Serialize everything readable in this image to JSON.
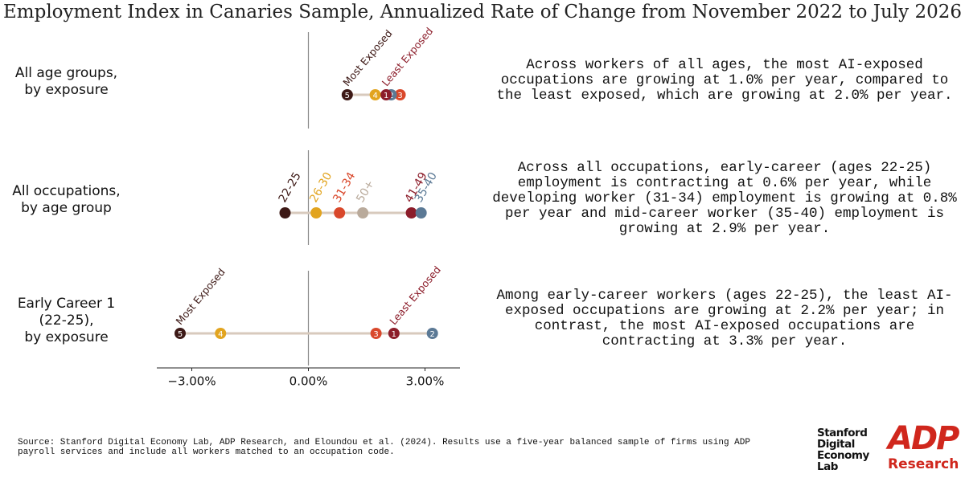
{
  "chart_data": {
    "type": "dot",
    "title": "Employment Index in Canaries Sample, Annualized Rate of Change from November 2022 to July 2026",
    "xlim": [
      -3.9,
      3.9
    ],
    "xticks": [
      {
        "value": -3,
        "label": "−3.00%"
      },
      {
        "value": 0,
        "label": "0.00%"
      },
      {
        "value": 3,
        "label": "3.00%"
      }
    ],
    "zero_line": true,
    "panels": [
      {
        "label": [
          "All age groups,",
          "by exposure"
        ],
        "point_labels": "inside",
        "exposure_labels": [
          "Most Exposed",
          "Least Exposed"
        ],
        "series": [
          {
            "name": "5",
            "color": "#3d1916",
            "value": 1.0
          },
          {
            "name": "4",
            "color": "#e2a41f",
            "value": 1.72
          },
          {
            "name": "3",
            "color": "#d9482b",
            "value": 2.36
          },
          {
            "name": "2",
            "color": "#5b7995",
            "value": 2.13
          },
          {
            "name": "1",
            "color": "#8c1d2a",
            "value": 2.0
          }
        ],
        "description": "Across workers of all ages, the most AI-exposed occupations are growing at 1.0% per year, compared to the least exposed, which are growing at 2.0% per year."
      },
      {
        "label": [
          "All occupations,",
          "by age group"
        ],
        "point_labels": "above",
        "series": [
          {
            "name": "22-25",
            "color": "#3d1916",
            "value": -0.6
          },
          {
            "name": "26-30",
            "color": "#e2a41f",
            "value": 0.2
          },
          {
            "name": "31-34",
            "color": "#d9482b",
            "value": 0.8
          },
          {
            "name": "50+",
            "color": "#b9aa9b",
            "value": 1.4
          },
          {
            "name": "41-49",
            "color": "#8c1d2a",
            "value": 2.65
          },
          {
            "name": "35-40",
            "color": "#5b7995",
            "value": 2.9
          }
        ],
        "description": "Across all occupations, early-career (ages 22-25) employment is contracting at 0.6% per year, while developing worker (31-34) employment is growing at 0.8% per year and mid-career worker (35-40) employment is growing at 2.9% per year."
      },
      {
        "label": [
          "Early Career 1",
          "(22-25),",
          "by exposure"
        ],
        "point_labels": "inside",
        "exposure_labels": [
          "Most Exposed",
          "Least Exposed"
        ],
        "series": [
          {
            "name": "5",
            "color": "#3d1916",
            "value": -3.3
          },
          {
            "name": "4",
            "color": "#e2a41f",
            "value": -2.26
          },
          {
            "name": "3",
            "color": "#d9482b",
            "value": 1.74
          },
          {
            "name": "2",
            "color": "#5b7995",
            "value": 3.19
          },
          {
            "name": "1",
            "color": "#8c1d2a",
            "value": 2.2
          }
        ],
        "description": "Among early-career workers (ages 22-25), the least AI-exposed occupations are growing at 2.2% per year; in contrast, the most AI-exposed occupations are contracting at 3.3% per year."
      }
    ],
    "source": "Source: Stanford Digital Economy Lab, ADP Research, and Eloundou et al. (2024). Results use a five-year balanced sample of firms using ADP payroll services and include all workers matched to an occupation code.",
    "logos": {
      "stanford": [
        "Stanford",
        "Digital",
        "Economy",
        "Lab"
      ],
      "adp": "ADP",
      "adp_sub": "Research"
    }
  }
}
